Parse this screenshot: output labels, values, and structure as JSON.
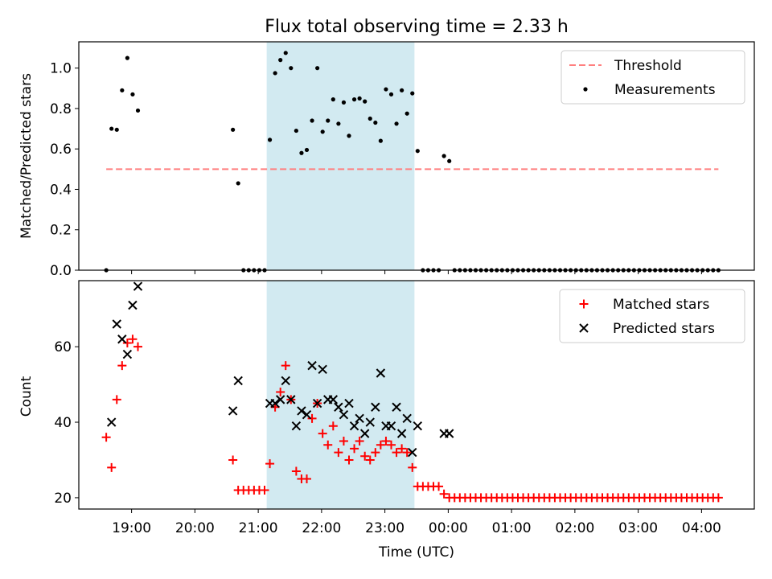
{
  "chart_data": [
    {
      "type": "scatter",
      "title": "Flux total observing time = 2.33 h",
      "xlabel": "",
      "ylabel": "Matched/Predicted stars",
      "xlim": [
        "18:10",
        "04:50"
      ],
      "ylim": [
        0,
        1.13
      ],
      "yticks": [
        "0.0",
        "0.2",
        "0.4",
        "0.6",
        "0.8",
        "1.0"
      ],
      "ytick_values": [
        0,
        0.2,
        0.4,
        0.6,
        0.8,
        1.0
      ],
      "legend_position": "top-right",
      "highlight_span": {
        "start": "21:08",
        "end": "23:28",
        "color": "#add8e6"
      },
      "threshold": {
        "name": "Threshold",
        "value": 0.5,
        "x_start": "18:36",
        "x_end": "04:16",
        "color": "#ff7f7f",
        "style": "dashed"
      },
      "series": [
        {
          "name": "Measurements",
          "color": "#000000",
          "marker": "dot",
          "points": [
            [
              "18:36",
              0.0
            ],
            [
              "18:41",
              0.7
            ],
            [
              "18:46",
              0.695
            ],
            [
              "18:51",
              0.89
            ],
            [
              "18:56",
              1.05
            ],
            [
              "19:01",
              0.87
            ],
            [
              "19:06",
              0.79
            ],
            [
              "20:36",
              0.695
            ],
            [
              "20:41",
              0.43
            ],
            [
              "20:46",
              0.0
            ],
            [
              "20:51",
              0.0
            ],
            [
              "20:56",
              0.0
            ],
            [
              "21:01",
              0.0
            ],
            [
              "21:06",
              0.0
            ],
            [
              "21:11",
              0.645
            ],
            [
              "21:16",
              0.975
            ],
            [
              "21:21",
              1.04
            ],
            [
              "21:26",
              1.075
            ],
            [
              "21:31",
              1.0
            ],
            [
              "21:36",
              0.69
            ],
            [
              "21:41",
              0.58
            ],
            [
              "21:46",
              0.595
            ],
            [
              "21:51",
              0.74
            ],
            [
              "21:56",
              1.0
            ],
            [
              "22:01",
              0.685
            ],
            [
              "22:06",
              0.74
            ],
            [
              "22:11",
              0.845
            ],
            [
              "22:16",
              0.725
            ],
            [
              "22:21",
              0.83
            ],
            [
              "22:26",
              0.665
            ],
            [
              "22:31",
              0.845
            ],
            [
              "22:36",
              0.85
            ],
            [
              "22:41",
              0.835
            ],
            [
              "22:46",
              0.75
            ],
            [
              "22:51",
              0.73
            ],
            [
              "22:56",
              0.64
            ],
            [
              "23:01",
              0.895
            ],
            [
              "23:06",
              0.87
            ],
            [
              "23:11",
              0.725
            ],
            [
              "23:16",
              0.89
            ],
            [
              "23:21",
              0.775
            ],
            [
              "23:26",
              0.875
            ],
            [
              "23:31",
              0.59
            ],
            [
              "23:36",
              0.0
            ],
            [
              "23:41",
              0.0
            ],
            [
              "23:46",
              0.0
            ],
            [
              "23:51",
              0.0
            ],
            [
              "23:56",
              0.565
            ],
            [
              "00:01",
              0.54
            ],
            [
              "00:06",
              0.0
            ],
            [
              "00:11",
              0.0
            ],
            [
              "00:16",
              0.0
            ],
            [
              "00:21",
              0.0
            ],
            [
              "00:26",
              0.0
            ],
            [
              "00:31",
              0.0
            ],
            [
              "00:36",
              0.0
            ],
            [
              "00:41",
              0.0
            ],
            [
              "00:46",
              0.0
            ],
            [
              "00:51",
              0.0
            ],
            [
              "00:56",
              0.0
            ],
            [
              "01:01",
              0.0
            ],
            [
              "01:06",
              0.0
            ],
            [
              "01:11",
              0.0
            ],
            [
              "01:16",
              0.0
            ],
            [
              "01:21",
              0.0
            ],
            [
              "01:26",
              0.0
            ],
            [
              "01:31",
              0.0
            ],
            [
              "01:36",
              0.0
            ],
            [
              "01:41",
              0.0
            ],
            [
              "01:46",
              0.0
            ],
            [
              "01:51",
              0.0
            ],
            [
              "01:56",
              0.0
            ],
            [
              "02:01",
              0.0
            ],
            [
              "02:06",
              0.0
            ],
            [
              "02:11",
              0.0
            ],
            [
              "02:16",
              0.0
            ],
            [
              "02:21",
              0.0
            ],
            [
              "02:26",
              0.0
            ],
            [
              "02:31",
              0.0
            ],
            [
              "02:36",
              0.0
            ],
            [
              "02:41",
              0.0
            ],
            [
              "02:46",
              0.0
            ],
            [
              "02:51",
              0.0
            ],
            [
              "02:56",
              0.0
            ],
            [
              "03:01",
              0.0
            ],
            [
              "03:06",
              0.0
            ],
            [
              "03:11",
              0.0
            ],
            [
              "03:16",
              0.0
            ],
            [
              "03:21",
              0.0
            ],
            [
              "03:26",
              0.0
            ],
            [
              "03:31",
              0.0
            ],
            [
              "03:36",
              0.0
            ],
            [
              "03:41",
              0.0
            ],
            [
              "03:46",
              0.0
            ],
            [
              "03:51",
              0.0
            ],
            [
              "03:56",
              0.0
            ],
            [
              "04:01",
              0.0
            ],
            [
              "04:06",
              0.0
            ],
            [
              "04:11",
              0.0
            ],
            [
              "04:16",
              0.0
            ]
          ]
        }
      ]
    },
    {
      "type": "scatter",
      "title": "",
      "xlabel": "Time (UTC)",
      "ylabel": "Count",
      "xlim": [
        "18:10",
        "04:50"
      ],
      "ylim": [
        17,
        77.5
      ],
      "yticks": [
        "20",
        "40",
        "60"
      ],
      "ytick_values": [
        20,
        40,
        60
      ],
      "xticks": [
        "19:00",
        "20:00",
        "21:00",
        "22:00",
        "23:00",
        "00:00",
        "01:00",
        "02:00",
        "03:00",
        "04:00"
      ],
      "legend_position": "top-right",
      "highlight_span": {
        "start": "21:08",
        "end": "23:28",
        "color": "#add8e6"
      },
      "series": [
        {
          "name": "Matched stars",
          "color": "#ff0000",
          "marker": "plus",
          "points": [
            [
              "18:36",
              36
            ],
            [
              "18:41",
              28
            ],
            [
              "18:46",
              46
            ],
            [
              "18:51",
              55
            ],
            [
              "18:56",
              61
            ],
            [
              "19:01",
              62
            ],
            [
              "19:06",
              60
            ],
            [
              "20:36",
              30
            ],
            [
              "20:41",
              22
            ],
            [
              "20:46",
              22
            ],
            [
              "20:51",
              22
            ],
            [
              "20:56",
              22
            ],
            [
              "21:01",
              22
            ],
            [
              "21:06",
              22
            ],
            [
              "21:11",
              29
            ],
            [
              "21:16",
              44
            ],
            [
              "21:21",
              48
            ],
            [
              "21:26",
              55
            ],
            [
              "21:31",
              46
            ],
            [
              "21:36",
              27
            ],
            [
              "21:41",
              25
            ],
            [
              "21:46",
              25
            ],
            [
              "21:51",
              41
            ],
            [
              "21:56",
              45
            ],
            [
              "22:01",
              37
            ],
            [
              "22:06",
              34
            ],
            [
              "22:11",
              39
            ],
            [
              "22:16",
              32
            ],
            [
              "22:21",
              35
            ],
            [
              "22:26",
              30
            ],
            [
              "22:31",
              33
            ],
            [
              "22:36",
              35
            ],
            [
              "22:41",
              31
            ],
            [
              "22:46",
              30
            ],
            [
              "22:51",
              32
            ],
            [
              "22:56",
              34
            ],
            [
              "23:01",
              35
            ],
            [
              "23:06",
              34
            ],
            [
              "23:11",
              32
            ],
            [
              "23:16",
              33
            ],
            [
              "23:21",
              32
            ],
            [
              "23:26",
              28
            ],
            [
              "23:31",
              23
            ],
            [
              "23:36",
              23
            ],
            [
              "23:41",
              23
            ],
            [
              "23:46",
              23
            ],
            [
              "23:51",
              23
            ],
            [
              "23:56",
              21
            ],
            [
              "00:01",
              20
            ],
            [
              "00:06",
              20
            ],
            [
              "00:11",
              20
            ],
            [
              "00:16",
              20
            ],
            [
              "00:21",
              20
            ],
            [
              "00:26",
              20
            ],
            [
              "00:31",
              20
            ],
            [
              "00:36",
              20
            ],
            [
              "00:41",
              20
            ],
            [
              "00:46",
              20
            ],
            [
              "00:51",
              20
            ],
            [
              "00:56",
              20
            ],
            [
              "01:01",
              20
            ],
            [
              "01:06",
              20
            ],
            [
              "01:11",
              20
            ],
            [
              "01:16",
              20
            ],
            [
              "01:21",
              20
            ],
            [
              "01:26",
              20
            ],
            [
              "01:31",
              20
            ],
            [
              "01:36",
              20
            ],
            [
              "01:41",
              20
            ],
            [
              "01:46",
              20
            ],
            [
              "01:51",
              20
            ],
            [
              "01:56",
              20
            ],
            [
              "02:01",
              20
            ],
            [
              "02:06",
              20
            ],
            [
              "02:11",
              20
            ],
            [
              "02:16",
              20
            ],
            [
              "02:21",
              20
            ],
            [
              "02:26",
              20
            ],
            [
              "02:31",
              20
            ],
            [
              "02:36",
              20
            ],
            [
              "02:41",
              20
            ],
            [
              "02:46",
              20
            ],
            [
              "02:51",
              20
            ],
            [
              "02:56",
              20
            ],
            [
              "03:01",
              20
            ],
            [
              "03:06",
              20
            ],
            [
              "03:11",
              20
            ],
            [
              "03:16",
              20
            ],
            [
              "03:21",
              20
            ],
            [
              "03:26",
              20
            ],
            [
              "03:31",
              20
            ],
            [
              "03:36",
              20
            ],
            [
              "03:41",
              20
            ],
            [
              "03:46",
              20
            ],
            [
              "03:51",
              20
            ],
            [
              "03:56",
              20
            ],
            [
              "04:01",
              20
            ],
            [
              "04:06",
              20
            ],
            [
              "04:11",
              20
            ],
            [
              "04:16",
              20
            ]
          ]
        },
        {
          "name": "Predicted stars",
          "color": "#000000",
          "marker": "x",
          "points": [
            [
              "18:41",
              40
            ],
            [
              "18:46",
              66
            ],
            [
              "18:51",
              62
            ],
            [
              "18:56",
              58
            ],
            [
              "19:01",
              71
            ],
            [
              "19:06",
              76
            ],
            [
              "20:36",
              43
            ],
            [
              "20:41",
              51
            ],
            [
              "21:11",
              45
            ],
            [
              "21:16",
              45
            ],
            [
              "21:21",
              46
            ],
            [
              "21:26",
              51
            ],
            [
              "21:31",
              46
            ],
            [
              "21:36",
              39
            ],
            [
              "21:41",
              43
            ],
            [
              "21:46",
              42
            ],
            [
              "21:51",
              55
            ],
            [
              "21:56",
              45
            ],
            [
              "22:01",
              54
            ],
            [
              "22:06",
              46
            ],
            [
              "22:11",
              46
            ],
            [
              "22:16",
              44
            ],
            [
              "22:21",
              42
            ],
            [
              "22:26",
              45
            ],
            [
              "22:31",
              39
            ],
            [
              "22:36",
              41
            ],
            [
              "22:41",
              37
            ],
            [
              "22:46",
              40
            ],
            [
              "22:51",
              44
            ],
            [
              "22:56",
              53
            ],
            [
              "23:01",
              39
            ],
            [
              "23:06",
              39
            ],
            [
              "23:11",
              44
            ],
            [
              "23:16",
              37
            ],
            [
              "23:21",
              41
            ],
            [
              "23:26",
              32
            ],
            [
              "23:31",
              39
            ],
            [
              "23:56",
              37
            ],
            [
              "00:01",
              37
            ]
          ]
        }
      ]
    }
  ]
}
